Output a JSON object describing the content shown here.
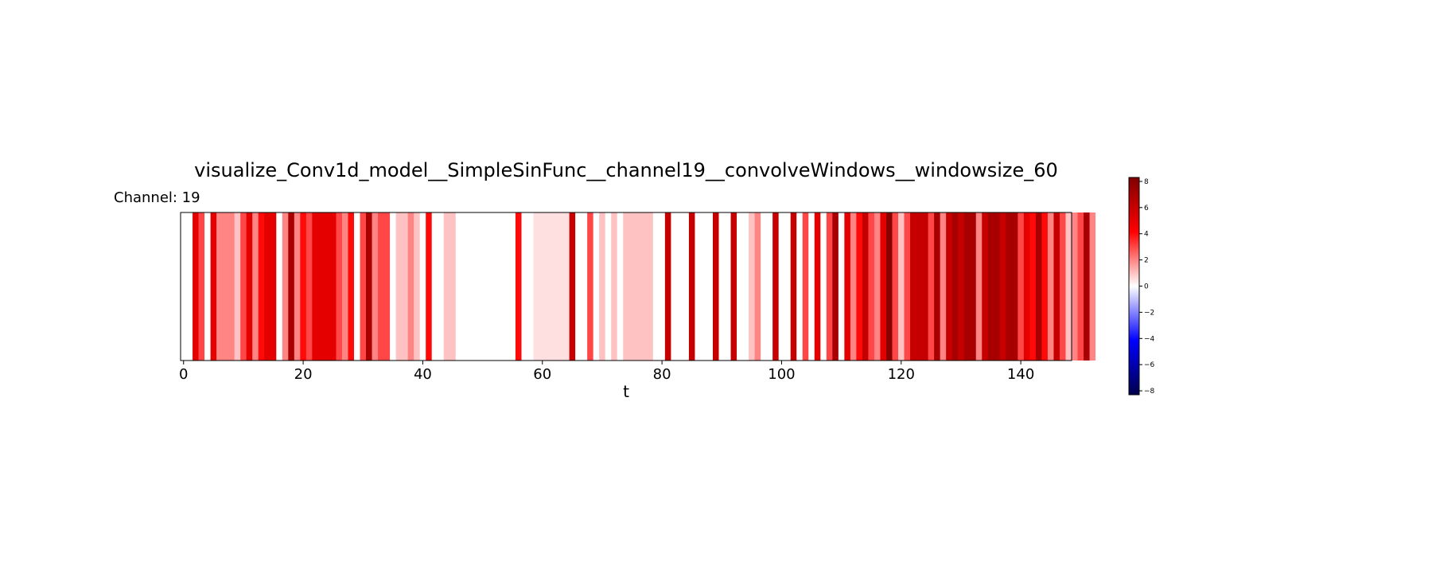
{
  "chart_data": {
    "type": "heatmap",
    "title": "visualize_Conv1d_model__SimpleSinFunc__channel19__convolveWindows__windowsize_60",
    "subtitle": "Channel: 19",
    "xlabel": "t",
    "ylabel": "",
    "xlim": [
      -0.5,
      148.5
    ],
    "xticks": [
      0,
      20,
      40,
      60,
      80,
      100,
      120,
      140
    ],
    "colormap": "seismic",
    "clim": [
      -8.3,
      8.3
    ],
    "colorbar_ticks": [
      8,
      6,
      4,
      2,
      0,
      -2,
      -4,
      -6,
      -8
    ],
    "grid": false,
    "values": [
      0,
      0,
      5,
      3,
      0,
      5,
      2,
      2,
      2,
      1,
      3,
      5,
      2,
      4,
      5,
      5,
      0,
      2,
      7,
      2,
      4,
      3,
      5,
      5,
      5,
      5,
      3,
      2,
      4,
      0,
      3,
      7,
      2,
      3,
      3,
      0,
      1,
      1,
      2,
      1,
      0,
      4,
      0,
      0,
      1,
      1,
      0,
      0,
      0,
      0,
      0,
      0,
      0,
      0,
      0,
      0,
      4,
      0,
      0,
      0.5,
      0.5,
      0.5,
      0.5,
      0.5,
      0.5,
      6,
      0,
      0,
      3,
      0,
      1,
      0,
      1,
      0,
      1,
      1,
      1,
      1,
      1,
      0,
      0,
      6,
      0,
      0,
      0,
      6,
      0,
      0,
      0,
      6,
      0,
      0,
      6,
      0,
      0,
      1,
      2,
      0,
      0,
      6,
      0,
      0,
      6,
      0,
      3,
      0,
      5,
      0,
      3,
      7,
      0,
      5,
      2,
      4,
      6,
      3,
      2,
      5,
      8,
      3,
      1,
      3,
      6,
      6,
      6,
      3,
      7,
      2,
      6,
      7,
      6,
      7,
      7,
      2,
      6,
      7,
      7,
      6,
      7,
      7,
      3,
      5,
      4,
      7,
      4,
      2,
      6,
      3,
      1,
      2,
      3,
      7,
      2,
      0
    ]
  }
}
